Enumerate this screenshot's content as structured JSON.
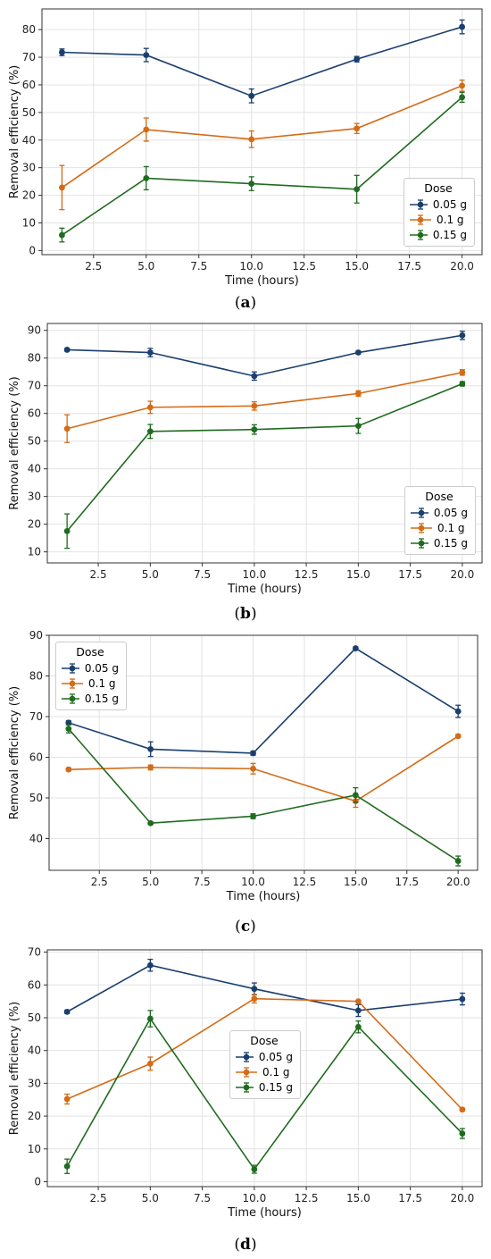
{
  "colors": {
    "s0": "#1a3f6e",
    "s1": "#d46b17",
    "s2": "#1f6b1f"
  },
  "captions": [
    "a",
    "b",
    "c",
    "d"
  ],
  "chart_data": [
    {
      "type": "line",
      "x": [
        1,
        5,
        10,
        15,
        20
      ],
      "xlabel": "Time (hours)",
      "ylabel": "Removal efficiency (%)",
      "xlim": [
        0.05,
        20.95
      ],
      "ylim": [
        -1.5,
        87.5
      ],
      "xticks": [
        "2.5",
        "5.0",
        "7.5",
        "10.0",
        "12.5",
        "15.0",
        "17.5",
        "20.0"
      ],
      "yticks": [
        "0",
        "10",
        "20",
        "30",
        "40",
        "50",
        "60",
        "70",
        "80"
      ],
      "grid": true,
      "legend": {
        "title": "Dose",
        "position": "lower right"
      },
      "series": [
        {
          "name": "0.05 g",
          "values": [
            71.8,
            70.8,
            56.0,
            69.3,
            81.0
          ],
          "errors": [
            1.2,
            2.4,
            2.5,
            1.0,
            2.5
          ]
        },
        {
          "name": "0.1 g",
          "values": [
            22.8,
            43.8,
            40.3,
            44.2,
            59.7
          ],
          "errors": [
            8.0,
            4.2,
            3.0,
            1.8,
            2.0
          ]
        },
        {
          "name": "0.15 g",
          "values": [
            5.6,
            26.2,
            24.2,
            22.2,
            55.5
          ],
          "errors": [
            2.5,
            4.2,
            2.5,
            5.0,
            1.8
          ]
        }
      ]
    },
    {
      "type": "line",
      "x": [
        1,
        5,
        10,
        15,
        20
      ],
      "xlabel": "Time (hours)",
      "ylabel": "Removal efficiency (%)",
      "xlim": [
        0.05,
        20.95
      ],
      "ylim": [
        6.0,
        92.5
      ],
      "xticks": [
        "2.5",
        "5.0",
        "7.5",
        "10.0",
        "12.5",
        "15.0",
        "17.5",
        "20.0"
      ],
      "yticks": [
        "10",
        "20",
        "30",
        "40",
        "50",
        "60",
        "70",
        "80",
        "90"
      ],
      "grid": true,
      "legend": {
        "title": "Dose",
        "position": "lower right"
      },
      "series": [
        {
          "name": "0.05 g",
          "values": [
            83.0,
            82.0,
            73.5,
            82.0,
            88.2
          ],
          "errors": [
            0.5,
            1.5,
            1.5,
            0.5,
            1.5
          ]
        },
        {
          "name": "0.1 g",
          "values": [
            54.5,
            62.2,
            62.7,
            67.2,
            74.8
          ],
          "errors": [
            5.0,
            2.2,
            1.5,
            1.0,
            1.0
          ]
        },
        {
          "name": "0.15 g",
          "values": [
            17.5,
            53.5,
            54.2,
            55.5,
            70.7
          ],
          "errors": [
            6.2,
            2.5,
            1.7,
            2.7,
            0.8
          ]
        }
      ]
    },
    {
      "type": "line",
      "x": [
        1,
        5,
        10,
        15,
        20
      ],
      "xlabel": "Time (hours)",
      "ylabel": "Removal efficiency (%)",
      "xlim": [
        0.05,
        20.95
      ],
      "ylim": [
        32.2,
        90.0
      ],
      "xticks": [
        "2.5",
        "5.0",
        "7.5",
        "10.0",
        "12.5",
        "15.0",
        "17.5",
        "20.0"
      ],
      "yticks": [
        "40",
        "50",
        "60",
        "70",
        "80",
        "90"
      ],
      "grid": true,
      "legend": {
        "title": "Dose",
        "position": "upper left"
      },
      "series": [
        {
          "name": "0.05 g",
          "values": [
            68.5,
            62.0,
            61.0,
            86.8,
            71.3
          ],
          "errors": [
            0.5,
            1.8,
            0.5,
            0.3,
            1.5
          ]
        },
        {
          "name": "0.1 g",
          "values": [
            57.0,
            57.5,
            57.2,
            49.2,
            65.2
          ],
          "errors": [
            0.4,
            0.6,
            1.3,
            1.5,
            0.4
          ]
        },
        {
          "name": "0.15 g",
          "values": [
            67.0,
            43.8,
            45.5,
            50.7,
            34.5
          ],
          "errors": [
            1.0,
            0.3,
            0.6,
            1.8,
            1.2
          ]
        }
      ]
    },
    {
      "type": "line",
      "x": [
        1,
        5,
        10,
        15,
        20
      ],
      "xlabel": "Time (hours)",
      "ylabel": "Removal efficiency (%)",
      "xlim": [
        0.05,
        20.95
      ],
      "ylim": [
        -1.5,
        70.7
      ],
      "xticks": [
        "2.5",
        "5.0",
        "7.5",
        "10.0",
        "12.5",
        "15.0",
        "17.5",
        "20.0"
      ],
      "yticks": [
        "0",
        "10",
        "20",
        "30",
        "40",
        "50",
        "60",
        "70"
      ],
      "grid": true,
      "legend": {
        "title": "Dose",
        "position": "center"
      },
      "series": [
        {
          "name": "0.05 g",
          "values": [
            51.8,
            66.0,
            58.8,
            52.2,
            55.7
          ],
          "errors": [
            0.5,
            1.8,
            1.8,
            1.8,
            1.8
          ]
        },
        {
          "name": "0.1 g",
          "values": [
            25.2,
            36.0,
            55.8,
            55.0,
            22.0
          ],
          "errors": [
            1.5,
            2.0,
            1.3,
            0.3,
            0.4
          ]
        },
        {
          "name": "0.15 g",
          "values": [
            4.7,
            49.7,
            3.8,
            47.2,
            14.7
          ],
          "errors": [
            2.2,
            2.5,
            1.2,
            1.8,
            1.5
          ]
        }
      ]
    }
  ]
}
